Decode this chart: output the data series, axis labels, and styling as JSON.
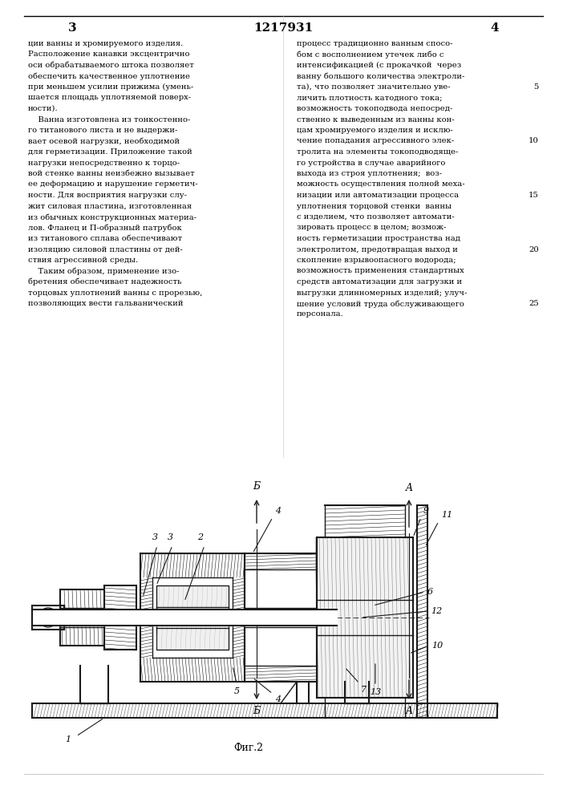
{
  "page_number_left": "3",
  "patent_number": "1217931",
  "page_number_right": "4",
  "left_column_text": "ции ванны и хромируемого изделия.\nРасположение канавки эксцентрично\nоси обрабатываемого штока позволяет\nобеспечить качественное уплотнение\nпри меньшем усилии прижима (умень-\nшается площадь уплотняемой поверх-\nности).\n    Ванна изготовлена из тонкостенно-\nго титанового листа и не выдержи-\nвает осевой нагрузки, необходимой\nдля герметизации. Приложение такой\nнагрузки непосредственно к торцо-\nвой стенке ванны неизбежно вызывает\nее деформацию и нарушение герметич-\nности. Для восприятия нагрузки слу-\nжит силовая пластина, изготовленная\nиз обычных конструкционных материа-\nлов. Фланец и П-образный патрубок\nиз титанового сплава обеспечивают\nизоляцию силовой пластины от дей-\nствия агрессивной среды.\n    Таким образом, применение изо-\nбретения обеспечивает надежность\nторцовых уплотнений ванны с прорезью,\nпозволяющих вести гальванический",
  "right_column_text": "процесс традиционно ванным спосо-\nбом с восполнением утечек либо с\nинтенсификацией (с прокачкой  через\nванну большого количества электроли-\nта), что позволяет значительно уве-\nличить плотность катодного тока;\nвозможность токоподвода непосред-\nственно к выведенным из ванны кон-\nцам хромируемого изделия и исклю-\nчение попадания агрессивного элек-\nтролита на элементы токоподводяще-\nго устройства в случае аварийного\nвыхода из строя уплотнения;  воз-\nможность осуществления полной меха-\nнизации или автоматизации процесса\nуплотнения торцовой стенки  ванны\nс изделием, что позволяет автомати-\nзировать процесс в целом; возмож-\nность герметизации пространства над\nэлектролитом, предотвращая выход и\nскопление взрывоопасного водорода;\nвозможность применения стандартных\nсредств автоматизации для загрузки и\nвыгрузки длинномерных изделий; улуч-\nшение условий труда обслуживающего\nперсонала.",
  "line_numbers_right": [
    5,
    10,
    15,
    20,
    25
  ],
  "fig_caption": "Фиг.2",
  "bg_color": "#ffffff",
  "text_color": "#000000",
  "drawing_color": "#1a1a1a"
}
